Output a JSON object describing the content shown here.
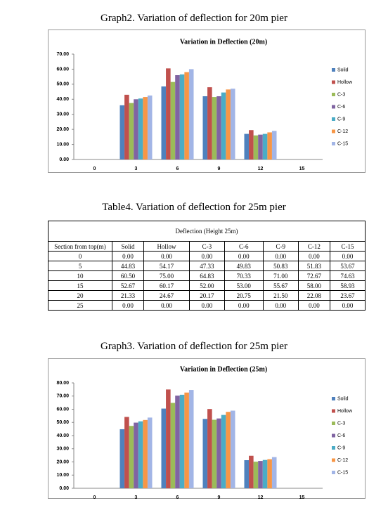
{
  "captions": [
    "Graph2. Variation of deflection for 20m pier",
    "Table4. Variation of deflection for 25m pier",
    "Graph3. Variation of deflection for 25m pier"
  ],
  "chart_data": [
    {
      "type": "bar",
      "title": "Variation in Deflection (20m)",
      "categories": [
        "0",
        "3",
        "6",
        "9",
        "12",
        "15"
      ],
      "series": [
        {
          "name": "Solid",
          "color": "#4f81bd",
          "values": [
            0,
            36,
            48.5,
            42,
            17,
            0
          ]
        },
        {
          "name": "Hollow",
          "color": "#c0504d",
          "values": [
            0,
            43,
            60.5,
            48,
            19.5,
            0
          ]
        },
        {
          "name": "C-3",
          "color": "#9bbb59",
          "values": [
            0,
            37.5,
            51.5,
            41.5,
            16,
            0
          ]
        },
        {
          "name": "C-6",
          "color": "#8064a2",
          "values": [
            0,
            40,
            56,
            42,
            16.5,
            0
          ]
        },
        {
          "name": "C-9",
          "color": "#4bacc6",
          "values": [
            0,
            40.5,
            56.5,
            44.5,
            17,
            0
          ]
        },
        {
          "name": "C-12",
          "color": "#f79646",
          "values": [
            0,
            41.5,
            58,
            46.5,
            18,
            0
          ]
        },
        {
          "name": "C-15",
          "color": "#a2b5e6",
          "values": [
            0,
            42.5,
            60,
            47,
            19,
            0
          ]
        }
      ],
      "ylim": [
        0,
        70
      ],
      "yticks": [
        {
          "value": 0,
          "label": "0.00"
        },
        {
          "value": 10,
          "label": "10.00"
        },
        {
          "value": 20,
          "label": "20.00"
        },
        {
          "value": 30,
          "label": "30.00"
        },
        {
          "value": 40,
          "label": "40.00"
        },
        {
          "value": 50,
          "label": "50.00"
        },
        {
          "value": 60,
          "label": "60.00"
        },
        {
          "value": 70,
          "label": "70.00"
        }
      ],
      "grid": false,
      "legend": "right"
    },
    {
      "type": "bar",
      "title": "Variation in Deflection (25m)",
      "categories": [
        "0",
        "3",
        "6",
        "9",
        "12",
        "15"
      ],
      "series": [
        {
          "name": "Solid",
          "color": "#4f81bd",
          "values": [
            0,
            44.83,
            60.5,
            52.67,
            21.33,
            0
          ]
        },
        {
          "name": "Hollow",
          "color": "#c0504d",
          "values": [
            0,
            54.17,
            75,
            60.17,
            24.67,
            0
          ]
        },
        {
          "name": "C-3",
          "color": "#9bbb59",
          "values": [
            0,
            47.33,
            64.83,
            52,
            20.17,
            0
          ]
        },
        {
          "name": "C-6",
          "color": "#8064a2",
          "values": [
            0,
            49.83,
            70.33,
            53,
            20.75,
            0
          ]
        },
        {
          "name": "C-9",
          "color": "#4bacc6",
          "values": [
            0,
            50.83,
            71,
            55.67,
            21.5,
            0
          ]
        },
        {
          "name": "C-12",
          "color": "#f79646",
          "values": [
            0,
            51.83,
            72.67,
            58,
            22.08,
            0
          ]
        },
        {
          "name": "C-15",
          "color": "#a2b5e6",
          "values": [
            0,
            53.67,
            74.63,
            58.93,
            23.67,
            0
          ]
        }
      ],
      "ylim": [
        0,
        80
      ],
      "yticks": [
        {
          "value": 0,
          "label": "0.00"
        },
        {
          "value": 10,
          "label": "10.00"
        },
        {
          "value": 20,
          "label": "20.00"
        },
        {
          "value": 30,
          "label": "30.00"
        },
        {
          "value": 40,
          "label": "40.00"
        },
        {
          "value": 50,
          "label": "50.00"
        },
        {
          "value": 60,
          "label": "60.00"
        },
        {
          "value": 70,
          "label": "70.00"
        },
        {
          "value": 80,
          "label": "80.00"
        }
      ],
      "grid": false,
      "legend": "right"
    }
  ],
  "table": {
    "title": "Deflection (Height 25m)",
    "columns": [
      "Section from top(m)",
      "Solid",
      "Hollow",
      "C-3",
      "C-6",
      "C-9",
      "C-12",
      "C-15"
    ],
    "rows": [
      [
        "0",
        "0.00",
        "0.00",
        "0.00",
        "0.00",
        "0.00",
        "0.00",
        "0.00"
      ],
      [
        "5",
        "44.83",
        "54.17",
        "47.33",
        "49.83",
        "50.83",
        "51.83",
        "53.67"
      ],
      [
        "10",
        "60.50",
        "75.00",
        "64.83",
        "70.33",
        "71.00",
        "72.67",
        "74.63"
      ],
      [
        "15",
        "52.67",
        "60.17",
        "52.00",
        "53.00",
        "55.67",
        "58.00",
        "58.93"
      ],
      [
        "20",
        "21.33",
        "24.67",
        "20.17",
        "20.75",
        "21.50",
        "22.08",
        "23.67"
      ],
      [
        "25",
        "0.00",
        "0.00",
        "0.00",
        "0.00",
        "0.00",
        "0.00",
        "0.00"
      ]
    ]
  }
}
